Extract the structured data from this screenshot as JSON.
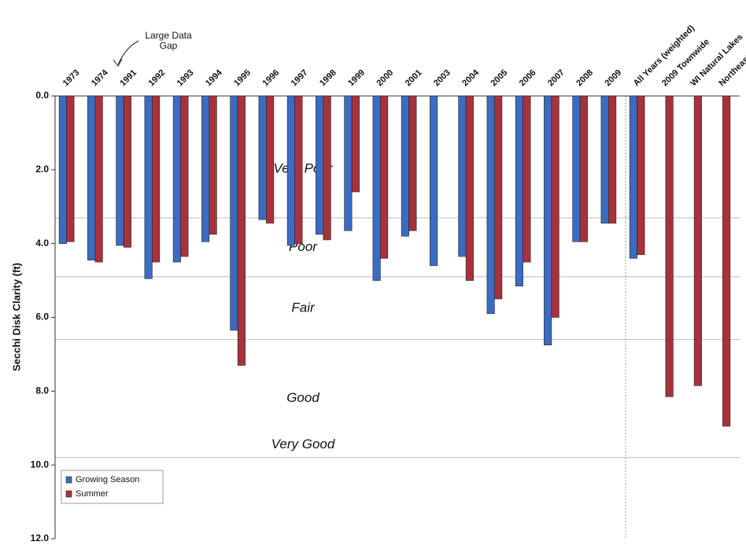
{
  "chart_data": {
    "type": "bar",
    "y_axis_label": "Secchi Disk Clarity (ft)",
    "categories": [
      "1973",
      "1974",
      "1991",
      "1992",
      "1993",
      "1994",
      "1995",
      "1996",
      "1997",
      "1998",
      "1999",
      "2000",
      "2001",
      "2003",
      "2004",
      "2005",
      "2006",
      "2007",
      "2008",
      "2009",
      "All Years (weighted)",
      "2009 Townwide",
      "WI Natural Lakes",
      "Northeast Region"
    ],
    "series": [
      {
        "name": "Growing Season",
        "color": "#3b6cc2",
        "values": [
          4.0,
          4.45,
          4.05,
          4.95,
          4.5,
          3.95,
          6.35,
          3.35,
          4.05,
          3.75,
          3.65,
          5.0,
          3.8,
          4.6,
          4.35,
          5.9,
          5.15,
          6.75,
          3.95,
          3.45,
          4.4,
          null,
          null,
          null
        ]
      },
      {
        "name": "Summer",
        "color": "#a8323c",
        "values": [
          3.95,
          4.5,
          4.1,
          4.5,
          4.35,
          3.75,
          7.3,
          3.45,
          4.0,
          3.9,
          2.6,
          4.4,
          3.65,
          null,
          5.0,
          5.5,
          4.5,
          6.0,
          3.95,
          3.45,
          4.3,
          8.15,
          7.85,
          8.95
        ]
      }
    ],
    "ylim": [
      0,
      12
    ],
    "y_inverted": true,
    "yticks": [
      {
        "value": 0,
        "label": "0.0"
      },
      {
        "value": 2,
        "label": "2.0"
      },
      {
        "value": 4,
        "label": "4.0"
      },
      {
        "value": 6,
        "label": "6.0"
      },
      {
        "value": 8,
        "label": "8.0"
      },
      {
        "value": 10,
        "label": "10.0"
      },
      {
        "value": 12,
        "label": "12.0"
      }
    ],
    "zone_lines": [
      3.3,
      4.9,
      6.6,
      9.8
    ],
    "zone_labels": [
      "Very Poor",
      "Poor",
      "Fair",
      "Good",
      "Very Good"
    ],
    "annotation_lines": [
      "Large Data",
      "Gap"
    ],
    "legend": "lower left"
  }
}
